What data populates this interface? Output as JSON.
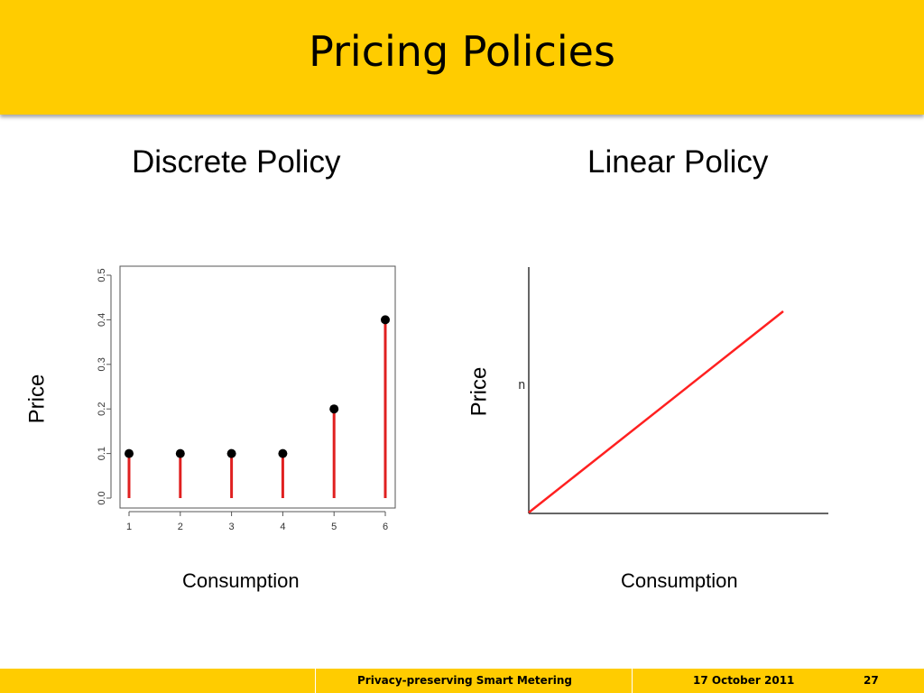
{
  "slide": {
    "title": "Pricing Policies"
  },
  "footer": {
    "presentation": "Privacy-preserving Smart Metering",
    "date": "17 October 2011",
    "page": "27"
  },
  "colors": {
    "accent": "#ffcc00",
    "stem": "#e02020",
    "line": "#ff2020"
  },
  "chart_data": [
    {
      "type": "scatter",
      "title": "Discrete Policy",
      "xlabel": "Consumption",
      "ylabel": "Price",
      "x": [
        1,
        2,
        3,
        4,
        5,
        6
      ],
      "y": [
        0.1,
        0.1,
        0.1,
        0.1,
        0.2,
        0.4
      ],
      "ylim": [
        0.0,
        0.5
      ],
      "yticks": [
        "0.0",
        "0.1",
        "0.2",
        "0.3",
        "0.4",
        "0.5"
      ],
      "xticks": [
        "1",
        "2",
        "3",
        "4",
        "5",
        "6"
      ],
      "grid": false,
      "style": "stems"
    },
    {
      "type": "line",
      "title": "Linear Policy",
      "xlabel": "Consumption",
      "ylabel": "Price",
      "axis_annotation": "n",
      "series": [
        {
          "x": [
            0,
            1
          ],
          "y": [
            0,
            1
          ]
        }
      ],
      "grid": false
    }
  ]
}
